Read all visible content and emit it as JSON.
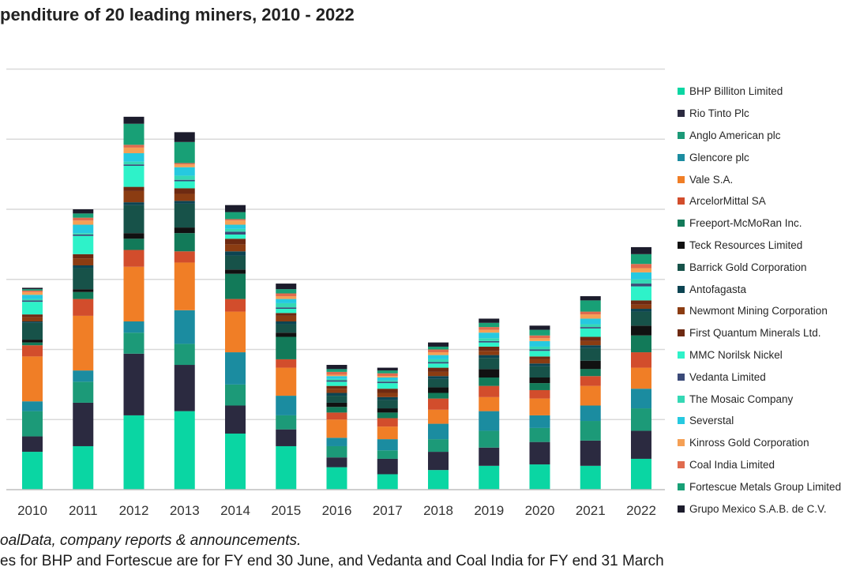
{
  "chart_data": {
    "type": "bar",
    "stacked": true,
    "title": "penditure of 20 leading miners, 2010 - 2022",
    "categories": [
      "2010",
      "2011",
      "2012",
      "2013",
      "2014",
      "2015",
      "2016",
      "2017",
      "2018",
      "2019",
      "2020",
      "2021",
      "2022"
    ],
    "gridlines": true,
    "legend_position": "right",
    "series": [
      {
        "name": "BHP Billiton Limited",
        "color": "#0ad6a3",
        "values": [
          2.7,
          3.1,
          5.3,
          5.6,
          4.0,
          3.1,
          1.6,
          1.1,
          1.4,
          1.7,
          1.8,
          1.7,
          2.2
        ]
      },
      {
        "name": "Rio Tinto Plc",
        "color": "#2b2a40",
        "values": [
          1.1,
          3.1,
          4.4,
          3.3,
          2.0,
          1.2,
          0.7,
          1.1,
          1.3,
          1.3,
          1.6,
          1.8,
          2.0
        ]
      },
      {
        "name": "Anglo American plc",
        "color": "#1c9a78",
        "values": [
          1.8,
          1.5,
          1.5,
          1.5,
          1.5,
          1.0,
          0.8,
          0.6,
          0.9,
          1.2,
          1.0,
          1.4,
          1.6
        ]
      },
      {
        "name": "Glencore plc",
        "color": "#1b8ca0",
        "values": [
          0.7,
          0.8,
          0.8,
          2.4,
          2.3,
          1.4,
          0.6,
          0.8,
          1.1,
          1.4,
          0.9,
          1.1,
          1.4
        ]
      },
      {
        "name": "Vale S.A.",
        "color": "#f07e26",
        "values": [
          3.2,
          3.9,
          3.9,
          3.4,
          2.9,
          2.0,
          1.3,
          0.9,
          1.0,
          1.0,
          1.2,
          1.4,
          1.5
        ]
      },
      {
        "name": "ArcelorMittal SA",
        "color": "#d24d2c",
        "values": [
          0.8,
          1.2,
          1.2,
          0.8,
          0.9,
          0.6,
          0.5,
          0.6,
          0.8,
          0.8,
          0.6,
          0.7,
          1.1
        ]
      },
      {
        "name": "Freeport-McMoRan Inc.",
        "color": "#127a59",
        "values": [
          0.2,
          0.5,
          0.8,
          1.3,
          1.8,
          1.6,
          0.4,
          0.4,
          0.4,
          0.6,
          0.5,
          0.5,
          1.2
        ]
      },
      {
        "name": "Teck Resources Limited",
        "color": "#111111",
        "values": [
          0.2,
          0.2,
          0.4,
          0.4,
          0.3,
          0.3,
          0.3,
          0.3,
          0.4,
          0.6,
          0.4,
          0.6,
          0.7
        ]
      },
      {
        "name": "Barrick Gold Corporation",
        "color": "#175249",
        "values": [
          1.2,
          1.5,
          2.0,
          1.7,
          1.0,
          0.6,
          0.5,
          0.6,
          0.6,
          0.8,
          0.8,
          0.9,
          1.0
        ]
      },
      {
        "name": "Antofagasta",
        "color": "#0c4452",
        "values": [
          0.1,
          0.2,
          0.2,
          0.2,
          0.3,
          0.2,
          0.2,
          0.2,
          0.2,
          0.2,
          0.2,
          0.2,
          0.2
        ]
      },
      {
        "name": "Newmont Mining Corporation",
        "color": "#8b3c12",
        "values": [
          0.3,
          0.5,
          0.8,
          0.5,
          0.5,
          0.4,
          0.3,
          0.3,
          0.3,
          0.3,
          0.3,
          0.3,
          0.3
        ]
      },
      {
        "name": "First Quantum Minerals Ltd.",
        "color": "#6e2a12",
        "values": [
          0.2,
          0.3,
          0.3,
          0.4,
          0.4,
          0.2,
          0.2,
          0.3,
          0.3,
          0.3,
          0.2,
          0.3,
          0.3
        ]
      },
      {
        "name": "MMC Norilsk Nickel",
        "color": "#2ef2c9",
        "values": [
          0.9,
          1.3,
          1.5,
          0.5,
          0.3,
          0.3,
          0.3,
          0.4,
          0.3,
          0.3,
          0.4,
          0.6,
          1.0
        ]
      },
      {
        "name": "Vedanta Limited",
        "color": "#3a4a78",
        "values": [
          0.1,
          0.1,
          0.1,
          0.1,
          0.2,
          0.1,
          0.1,
          0.1,
          0.1,
          0.1,
          0.1,
          0.1,
          0.2
        ]
      },
      {
        "name": "The Mosaic Company",
        "color": "#35d8b5",
        "values": [
          0.1,
          0.1,
          0.2,
          0.3,
          0.2,
          0.3,
          0.1,
          0.1,
          0.2,
          0.2,
          0.2,
          0.2,
          0.3
        ]
      },
      {
        "name": "Severstal",
        "color": "#26c9e0",
        "values": [
          0.3,
          0.6,
          0.6,
          0.6,
          0.3,
          0.3,
          0.2,
          0.2,
          0.3,
          0.4,
          0.4,
          0.4,
          0.5
        ]
      },
      {
        "name": "Kinross Gold Corporation",
        "color": "#f5a055",
        "values": [
          0.2,
          0.3,
          0.4,
          0.2,
          0.3,
          0.2,
          0.1,
          0.1,
          0.2,
          0.2,
          0.2,
          0.3,
          0.3
        ]
      },
      {
        "name": "Coal India Limited",
        "color": "#e06b4e",
        "values": [
          0.1,
          0.2,
          0.2,
          0.1,
          0.1,
          0.2,
          0.2,
          0.2,
          0.2,
          0.2,
          0.2,
          0.2,
          0.3
        ]
      },
      {
        "name": "Fortescue Metals Group Limited",
        "color": "#18a076",
        "values": [
          0.1,
          0.3,
          1.5,
          1.5,
          0.5,
          0.3,
          0.2,
          0.2,
          0.2,
          0.3,
          0.4,
          0.8,
          0.7
        ]
      },
      {
        "name": "Grupo Mexico S.A.B. de C.V.",
        "color": "#1c1c2c",
        "values": [
          0.1,
          0.3,
          0.5,
          0.7,
          0.5,
          0.4,
          0.3,
          0.2,
          0.3,
          0.3,
          0.3,
          0.3,
          0.5
        ]
      }
    ]
  },
  "source_note": "oalData, company reports & announcements.",
  "foot_note": "es for BHP and Fortescue are for FY end 30 June, and Vedanta and Coal India for FY end 31 March",
  "colors": {
    "gridline": "#d9d9d9",
    "axis": "#bfbfbf"
  }
}
